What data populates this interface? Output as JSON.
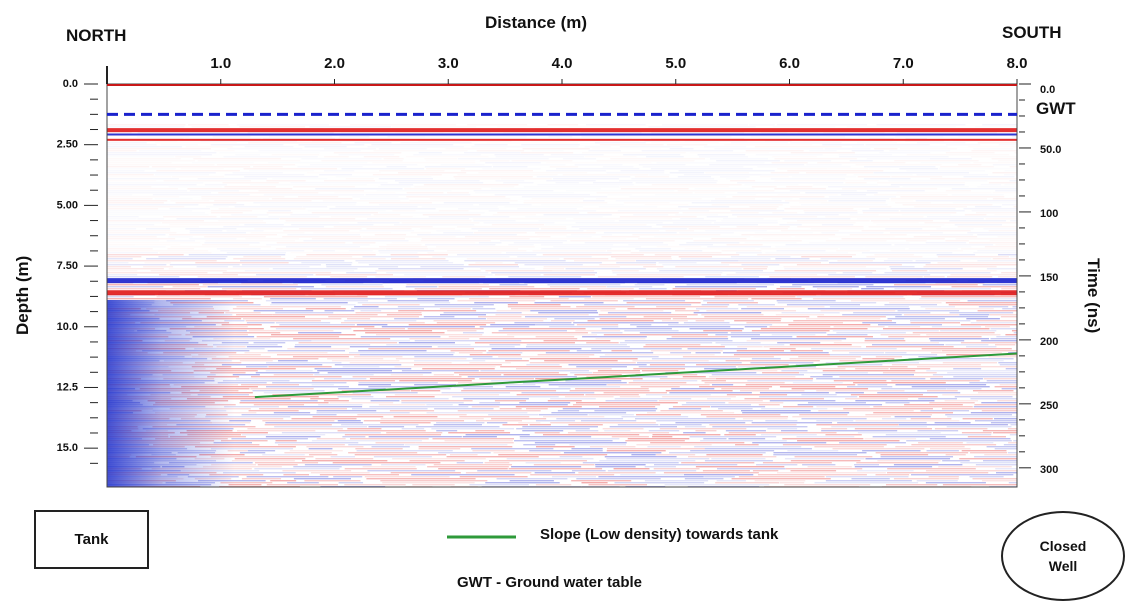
{
  "chart_data": {
    "type": "heatmap",
    "title": "Distance (m)",
    "labels": {
      "north": "NORTH",
      "south": "SOUTH"
    },
    "xlabel": "Distance (m)",
    "ylabel_left": "Depth (m)",
    "ylabel_right": "Time (ns)",
    "x_ticks": [
      "1.0",
      "2.0",
      "3.0",
      "4.0",
      "5.0",
      "6.0",
      "7.0",
      "8.0"
    ],
    "x_tick_values": [
      1,
      2,
      3,
      4,
      5,
      6,
      7,
      8
    ],
    "xlim": [
      0,
      8
    ],
    "depth_ticks": [
      "0.0",
      "2.50",
      "5.00",
      "7.50",
      "10.0",
      "12.5",
      "15.0"
    ],
    "depth_tick_values": [
      0,
      2.5,
      5.0,
      7.5,
      10.0,
      12.5,
      15.0
    ],
    "depth_lim": [
      0,
      16.6
    ],
    "time_ticks": [
      "0.0",
      "50.0",
      "100",
      "150",
      "200",
      "250",
      "300"
    ],
    "time_tick_values": [
      0,
      50,
      100,
      150,
      200,
      250,
      300
    ],
    "time_lim": [
      0,
      315
    ],
    "gwt": {
      "label": "GWT",
      "depth": 1.25,
      "color": "#1a22cc"
    },
    "reflector_depths": [
      1.9,
      2.3,
      8.1,
      8.6
    ],
    "slope_line": {
      "x": [
        1.3,
        8.0
      ],
      "depth": [
        12.9,
        11.1
      ],
      "color": "#2e9a3a"
    }
  },
  "legend": {
    "tank_label": "Tank",
    "slope_label": "Slope (Low density) towards tank",
    "gwt_note": "GWT - Ground water table",
    "closed_well_label": "Closed\nWell"
  },
  "colors": {
    "red": "#e01818",
    "blue": "#1a22cc",
    "green": "#2e9a3a"
  }
}
